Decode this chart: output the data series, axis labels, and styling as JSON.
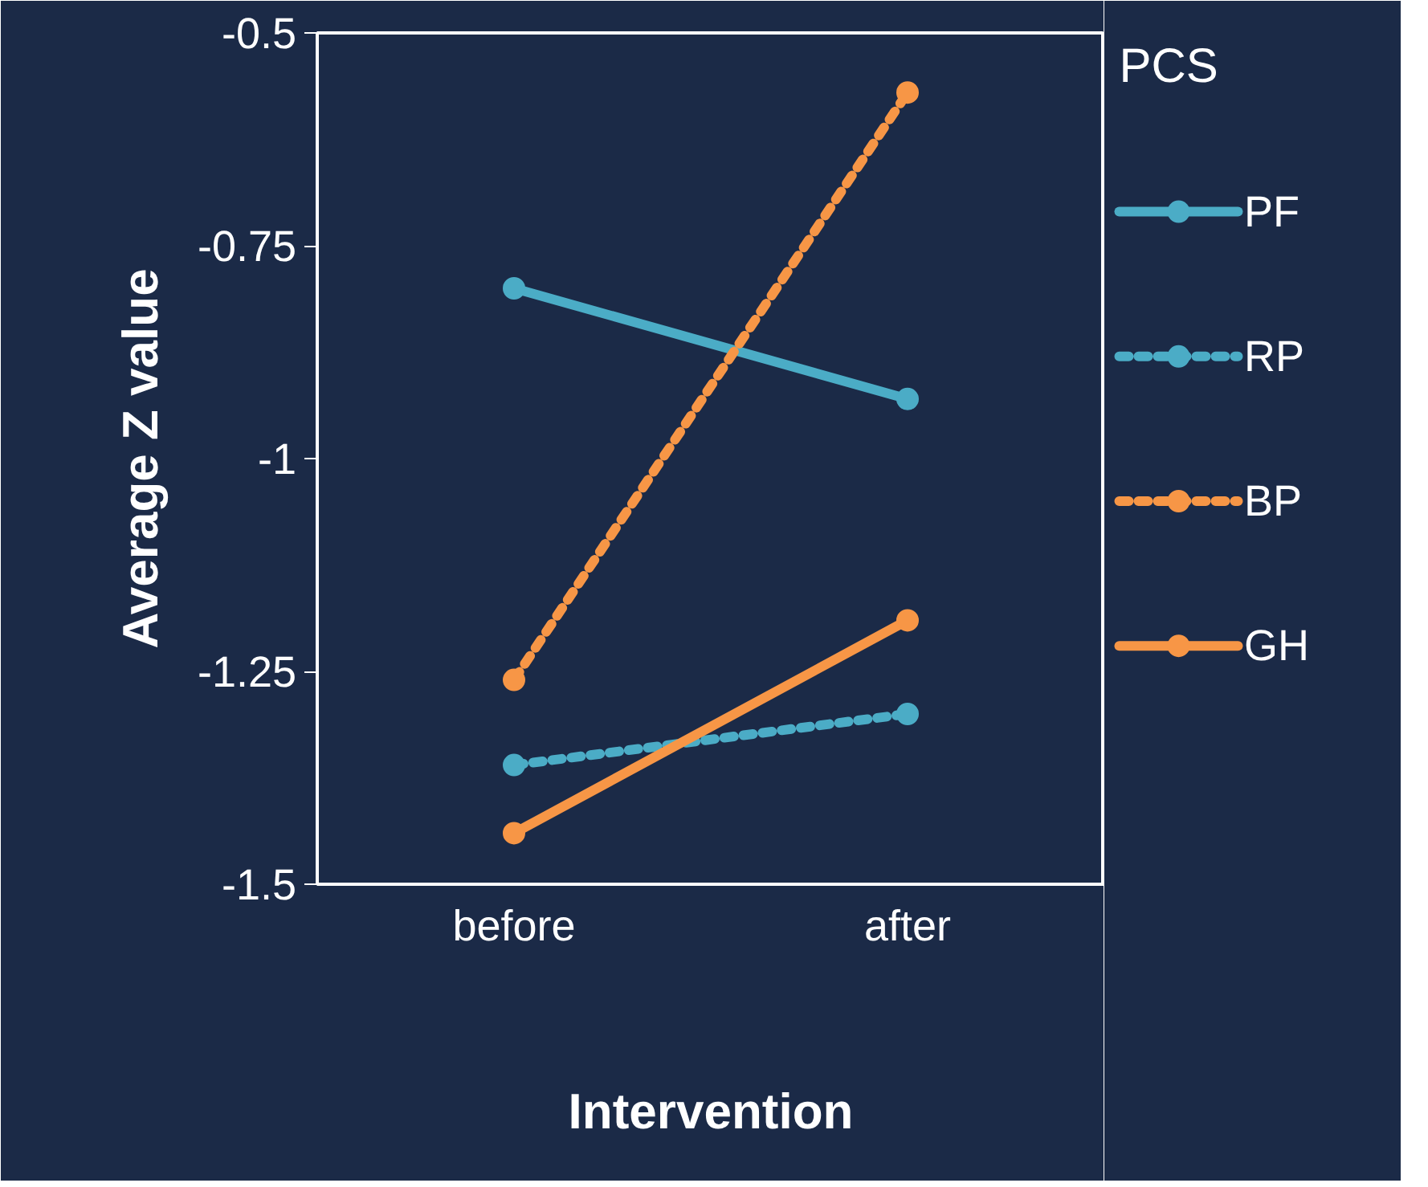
{
  "chart_data": {
    "type": "line",
    "xlabel": "Intervention",
    "ylabel": "Average Z value",
    "legend_title": "PCS",
    "categories": [
      "before",
      "after"
    ],
    "ylim": [
      -1.5,
      -0.5
    ],
    "yticks": [
      -0.5,
      -0.75,
      -1,
      -1.25,
      -1.5
    ],
    "grid": false,
    "legend": "right",
    "marker": "circle",
    "series": [
      {
        "name": "PF",
        "color": "#4bacc6",
        "line_style": "solid",
        "values": [
          -0.8,
          -0.93
        ]
      },
      {
        "name": "RP",
        "color": "#4bacc6",
        "line_style": "dashed",
        "values": [
          -1.36,
          -1.3
        ]
      },
      {
        "name": "BP",
        "color": "#f79646",
        "line_style": "dashed",
        "values": [
          -1.26,
          -0.57
        ]
      },
      {
        "name": "GH",
        "color": "#f79646",
        "line_style": "solid",
        "values": [
          -1.44,
          -1.19
        ]
      }
    ]
  }
}
